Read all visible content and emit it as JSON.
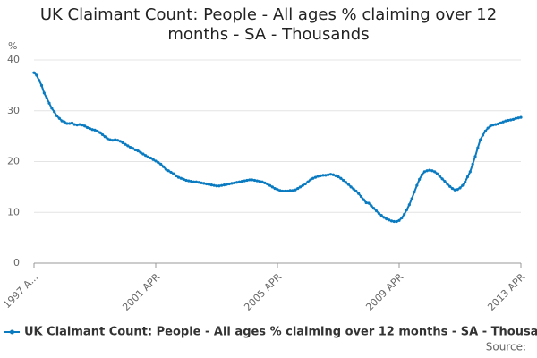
{
  "chart_data": {
    "type": "line",
    "title": "UK Claimant Count: People - All ages % claiming over 12 months - SA - Thousands",
    "y_label": "%",
    "source": "Source:",
    "categories": [
      "1997 A...",
      null,
      null,
      null,
      null,
      null,
      null,
      null,
      null,
      null,
      null,
      null,
      null,
      null,
      null,
      null,
      null,
      null,
      null,
      null,
      null,
      null,
      null,
      null,
      null,
      null,
      null,
      null,
      null,
      null,
      null,
      null,
      null,
      null,
      null,
      null,
      null,
      null,
      null,
      null,
      null,
      null,
      null,
      null,
      null,
      null,
      null,
      null,
      "2001 APR",
      null,
      null,
      null,
      null,
      null,
      null,
      null,
      null,
      null,
      null,
      null,
      null,
      null,
      null,
      null,
      null,
      null,
      null,
      null,
      null,
      null,
      null,
      null,
      null,
      null,
      null,
      null,
      null,
      null,
      null,
      null,
      null,
      null,
      null,
      null,
      null,
      null,
      null,
      null,
      null,
      null,
      null,
      null,
      null,
      null,
      null,
      null,
      "2005 APR",
      null,
      null,
      null,
      null,
      null,
      null,
      null,
      null,
      null,
      null,
      null,
      null,
      null,
      null,
      null,
      null,
      null,
      null,
      null,
      null,
      null,
      null,
      null,
      null,
      null,
      null,
      null,
      null,
      null,
      null,
      null,
      null,
      null,
      null,
      null,
      null,
      null,
      null,
      null,
      null,
      null,
      null,
      null,
      null,
      null,
      null,
      null,
      "2009 APR",
      null,
      null,
      null,
      null,
      null,
      null,
      null,
      null,
      null,
      null,
      null,
      null,
      null,
      null,
      null,
      null,
      null,
      null,
      null,
      null,
      null,
      null,
      null,
      null,
      null,
      null,
      null,
      null,
      null,
      null,
      null,
      null,
      null,
      null,
      null,
      null,
      null,
      null,
      null,
      null,
      null,
      null,
      null,
      null,
      null,
      null,
      null,
      "2013 APR"
    ],
    "series": [
      {
        "name": "UK Claimant Count: People - All ages % claiming over 12 months - SA - Thousands",
        "color": "#0a7bc0",
        "values": [
          37.5,
          37,
          36,
          35,
          33.5,
          32.5,
          31.5,
          30.5,
          29.8,
          29,
          28.5,
          28,
          27.8,
          27.5,
          27.5,
          27.6,
          27.3,
          27.2,
          27.3,
          27.2,
          27,
          26.7,
          26.5,
          26.3,
          26.2,
          26,
          25.7,
          25.3,
          24.9,
          24.5,
          24.3,
          24.2,
          24.3,
          24.2,
          24,
          23.7,
          23.4,
          23.1,
          22.8,
          22.6,
          22.3,
          22.1,
          21.8,
          21.5,
          21.2,
          20.9,
          20.7,
          20.4,
          20.1,
          19.8,
          19.5,
          19,
          18.5,
          18.2,
          17.9,
          17.6,
          17.2,
          16.9,
          16.7,
          16.5,
          16.3,
          16.2,
          16.1,
          16,
          16,
          15.9,
          15.8,
          15.7,
          15.6,
          15.5,
          15.4,
          15.3,
          15.2,
          15.2,
          15.3,
          15.4,
          15.5,
          15.6,
          15.7,
          15.8,
          15.9,
          16,
          16.1,
          16.2,
          16.3,
          16.4,
          16.4,
          16.3,
          16.2,
          16.1,
          16,
          15.8,
          15.6,
          15.3,
          15,
          14.7,
          14.5,
          14.3,
          14.2,
          14.2,
          14.2,
          14.3,
          14.3,
          14.4,
          14.7,
          15,
          15.3,
          15.6,
          16,
          16.4,
          16.7,
          16.9,
          17.1,
          17.2,
          17.3,
          17.3,
          17.4,
          17.5,
          17.4,
          17.2,
          17,
          16.7,
          16.3,
          15.9,
          15.5,
          15,
          14.6,
          14.2,
          13.7,
          13.1,
          12.5,
          11.9,
          11.8,
          11.3,
          10.8,
          10.3,
          9.8,
          9.4,
          9,
          8.7,
          8.5,
          8.3,
          8.2,
          8.2,
          8.4,
          8.9,
          9.6,
          10.5,
          11.5,
          12.7,
          14,
          15.3,
          16.5,
          17.4,
          18,
          18.2,
          18.3,
          18.2,
          18,
          17.6,
          17.1,
          16.6,
          16.1,
          15.6,
          15.1,
          14.7,
          14.4,
          14.5,
          14.8,
          15.3,
          16,
          17,
          18,
          19.5,
          21,
          22.7,
          24.3,
          25.2,
          26,
          26.6,
          27,
          27.2,
          27.3,
          27.4,
          27.6,
          27.8,
          28,
          28.1,
          28.2,
          28.3,
          28.5,
          28.6,
          28.7
        ]
      }
    ],
    "ylim": [
      0,
      40
    ],
    "yticks": [
      0,
      10,
      20,
      30,
      40
    ],
    "grid": true
  }
}
